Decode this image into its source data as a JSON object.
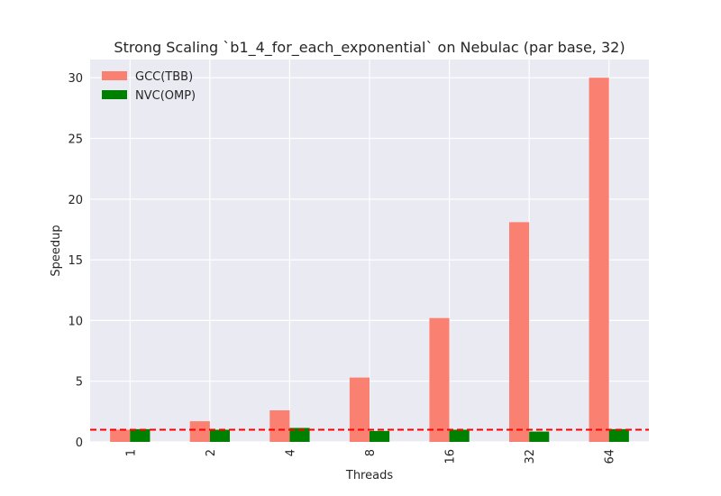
{
  "chart_data": {
    "type": "bar",
    "title": "Strong Scaling `b1_4_for_each_exponential` on Nebulac (par base, 32)",
    "xlabel": "Threads",
    "ylabel": "Speedup",
    "categories": [
      "1",
      "2",
      "4",
      "8",
      "16",
      "32",
      "64"
    ],
    "series": [
      {
        "name": "GCC(TBB)",
        "color": "#fa8072",
        "values": [
          1.0,
          1.7,
          2.6,
          5.3,
          10.2,
          18.1,
          30.0
        ]
      },
      {
        "name": "NVC(OMP)",
        "color": "#008000",
        "values": [
          1.05,
          1.0,
          1.15,
          0.9,
          1.0,
          0.85,
          1.05
        ]
      }
    ],
    "ylim": [
      0,
      31.5
    ],
    "yticks": [
      0,
      5,
      10,
      15,
      20,
      25,
      30
    ],
    "reference_line": {
      "y": 1.0,
      "color": "#ff0000",
      "style": "dashed"
    },
    "grid": true,
    "legend_position": "top-left",
    "background": "#eaeaf2"
  }
}
